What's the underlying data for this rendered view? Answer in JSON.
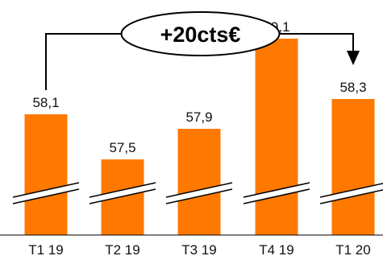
{
  "chart_data": {
    "type": "bar",
    "categories": [
      "T1 19",
      "T2 19",
      "T3 19",
      "T4 19",
      "T1 20"
    ],
    "values": [
      58.1,
      57.5,
      57.9,
      59.1,
      58.3
    ],
    "value_labels": [
      "58,1",
      "57,5",
      "57,9",
      "59,1",
      "58,3"
    ],
    "axis_break": true,
    "annotation": {
      "text": "+20cts€",
      "from_category": "T1 19",
      "to_category": "T1 20"
    },
    "colors": {
      "bar": "#FF7900",
      "text": "#111111",
      "line": "#000000"
    }
  }
}
